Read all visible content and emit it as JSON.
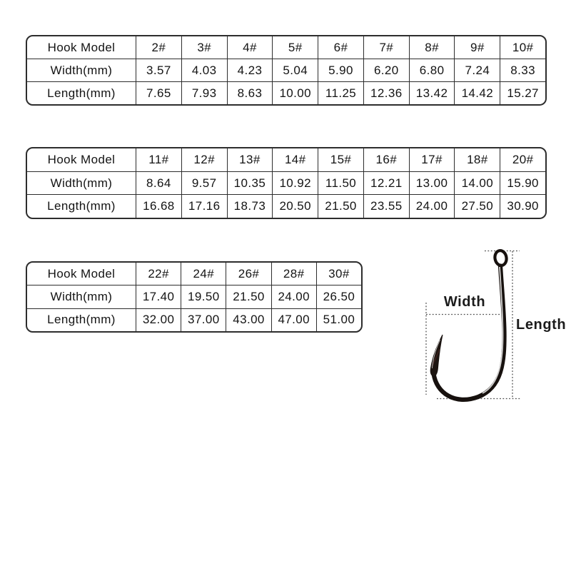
{
  "diagram": {
    "width_label": "Width",
    "length_label": "Length"
  },
  "colors": {
    "table_border": "#2d2d2d",
    "text": "#141414",
    "dotted_line": "#4d4d4d",
    "hook": "#17110e"
  },
  "chart_data": [
    {
      "type": "table",
      "rows": [
        [
          "Hook Model",
          "2#",
          "3#",
          "4#",
          "5#",
          "6#",
          "7#",
          "8#",
          "9#",
          "10#"
        ],
        [
          "Width(mm)",
          "3.57",
          "4.03",
          "4.23",
          "5.04",
          "5.90",
          "6.20",
          "6.80",
          "7.24",
          "8.33"
        ],
        [
          "Length(mm)",
          "7.65",
          "7.93",
          "8.63",
          "10.00",
          "11.25",
          "12.36",
          "13.42",
          "14.42",
          "15.27"
        ]
      ]
    },
    {
      "type": "table",
      "rows": [
        [
          "Hook Model",
          "11#",
          "12#",
          "13#",
          "14#",
          "15#",
          "16#",
          "17#",
          "18#",
          "20#"
        ],
        [
          "Width(mm)",
          "8.64",
          "9.57",
          "10.35",
          "10.92",
          "11.50",
          "12.21",
          "13.00",
          "14.00",
          "15.90"
        ],
        [
          "Length(mm)",
          "16.68",
          "17.16",
          "18.73",
          "20.50",
          "21.50",
          "23.55",
          "24.00",
          "27.50",
          "30.90"
        ]
      ]
    },
    {
      "type": "table",
      "rows": [
        [
          "Hook Model",
          "22#",
          "24#",
          "26#",
          "28#",
          "30#"
        ],
        [
          "Width(mm)",
          "17.40",
          "19.50",
          "21.50",
          "24.00",
          "26.50"
        ],
        [
          "Length(mm)",
          "32.00",
          "37.00",
          "43.00",
          "47.00",
          "51.00"
        ]
      ]
    }
  ]
}
